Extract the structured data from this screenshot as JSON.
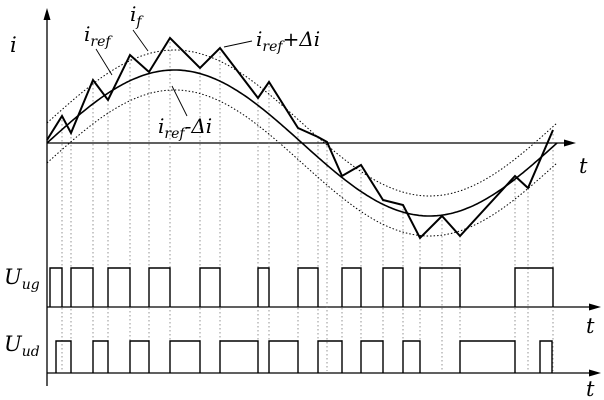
{
  "labels": {
    "i_axis": "i",
    "i_ref_base": "i",
    "i_ref_sub": "ref",
    "i_f_base": "i",
    "i_f_sub": "f",
    "upper_base": "i",
    "upper_sub": "ref",
    "upper_tail": "+Δi",
    "lower_base": "i",
    "lower_sub": "ref",
    "lower_tail": "-Δi",
    "t_axis_1": "t",
    "t_axis_2": "t",
    "t_axis_3": "t",
    "u_ug_base": "U",
    "u_ug_sub": "ug",
    "u_ud_base": "U",
    "u_ud_sub": "ud"
  }
}
